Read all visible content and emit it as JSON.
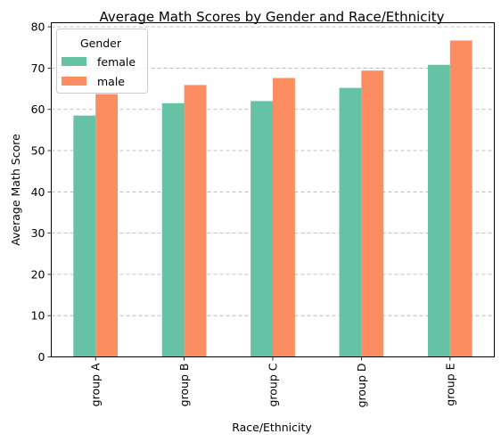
{
  "chart_data": {
    "type": "bar",
    "title": "Average Math Scores by Gender and Race/Ethnicity",
    "xlabel": "Race/Ethnicity",
    "ylabel": "Average Math Score",
    "categories": [
      "group A",
      "group B",
      "group C",
      "group D",
      "group E"
    ],
    "series": [
      {
        "name": "female",
        "color": "#66c2a5",
        "values": [
          58.5,
          61.5,
          62.0,
          65.2,
          70.8
        ]
      },
      {
        "name": "male",
        "color": "#fc8d62",
        "values": [
          63.7,
          65.9,
          67.6,
          69.4,
          76.7
        ]
      }
    ],
    "ylim": [
      0,
      81
    ],
    "yticks": [
      0,
      10,
      20,
      30,
      40,
      50,
      60,
      70,
      80
    ],
    "grid": "y-dashed",
    "legend": {
      "title": "Gender",
      "placement": "top-left"
    }
  }
}
